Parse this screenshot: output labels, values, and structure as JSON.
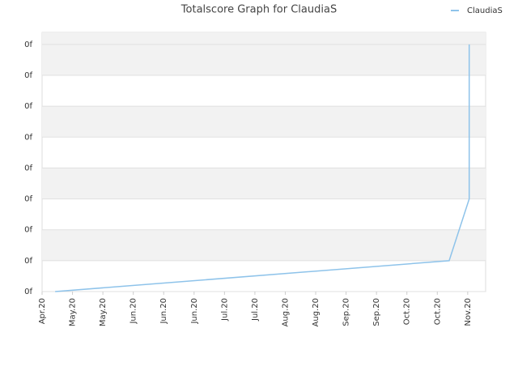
{
  "chart_data": {
    "type": "line",
    "title": "Totalscore Graph for ClaudiaS",
    "x": [
      0.43,
      13.39,
      14.05,
      14.05
    ],
    "series": [
      {
        "name": "ClaudiaS",
        "color": "#8ec3ea",
        "values": [
          0,
          1,
          3,
          8
        ]
      }
    ],
    "xlim": [
      0,
      14.59
    ],
    "xticks": [
      {
        "value": 0,
        "label": "Apr.20"
      },
      {
        "value": 1,
        "label": "May.20"
      },
      {
        "value": 2,
        "label": "May.20"
      },
      {
        "value": 3,
        "label": "Jun.20"
      },
      {
        "value": 4,
        "label": "Jun.20"
      },
      {
        "value": 5,
        "label": "Jun.20"
      },
      {
        "value": 6,
        "label": "Jul.20"
      },
      {
        "value": 7,
        "label": "Jul.20"
      },
      {
        "value": 8,
        "label": "Aug.20"
      },
      {
        "value": 9,
        "label": "Aug.20"
      },
      {
        "value": 10,
        "label": "Sep.20"
      },
      {
        "value": 11,
        "label": "Sep.20"
      },
      {
        "value": 12,
        "label": "Oct.20"
      },
      {
        "value": 13,
        "label": "Oct.20"
      },
      {
        "value": 14,
        "label": "Nov.20"
      }
    ],
    "ylim": [
      0,
      8.39
    ],
    "yticks": [
      {
        "value": 0,
        "label": "0f"
      },
      {
        "value": 1,
        "label": "0f"
      },
      {
        "value": 2,
        "label": "0f"
      },
      {
        "value": 3,
        "label": "0f"
      },
      {
        "value": 4,
        "label": "0f"
      },
      {
        "value": 5,
        "label": "0f"
      },
      {
        "value": 6,
        "label": "0f"
      },
      {
        "value": 7,
        "label": "0f"
      },
      {
        "value": 8,
        "label": "0f"
      }
    ],
    "grid": true,
    "legend": "top-right"
  }
}
